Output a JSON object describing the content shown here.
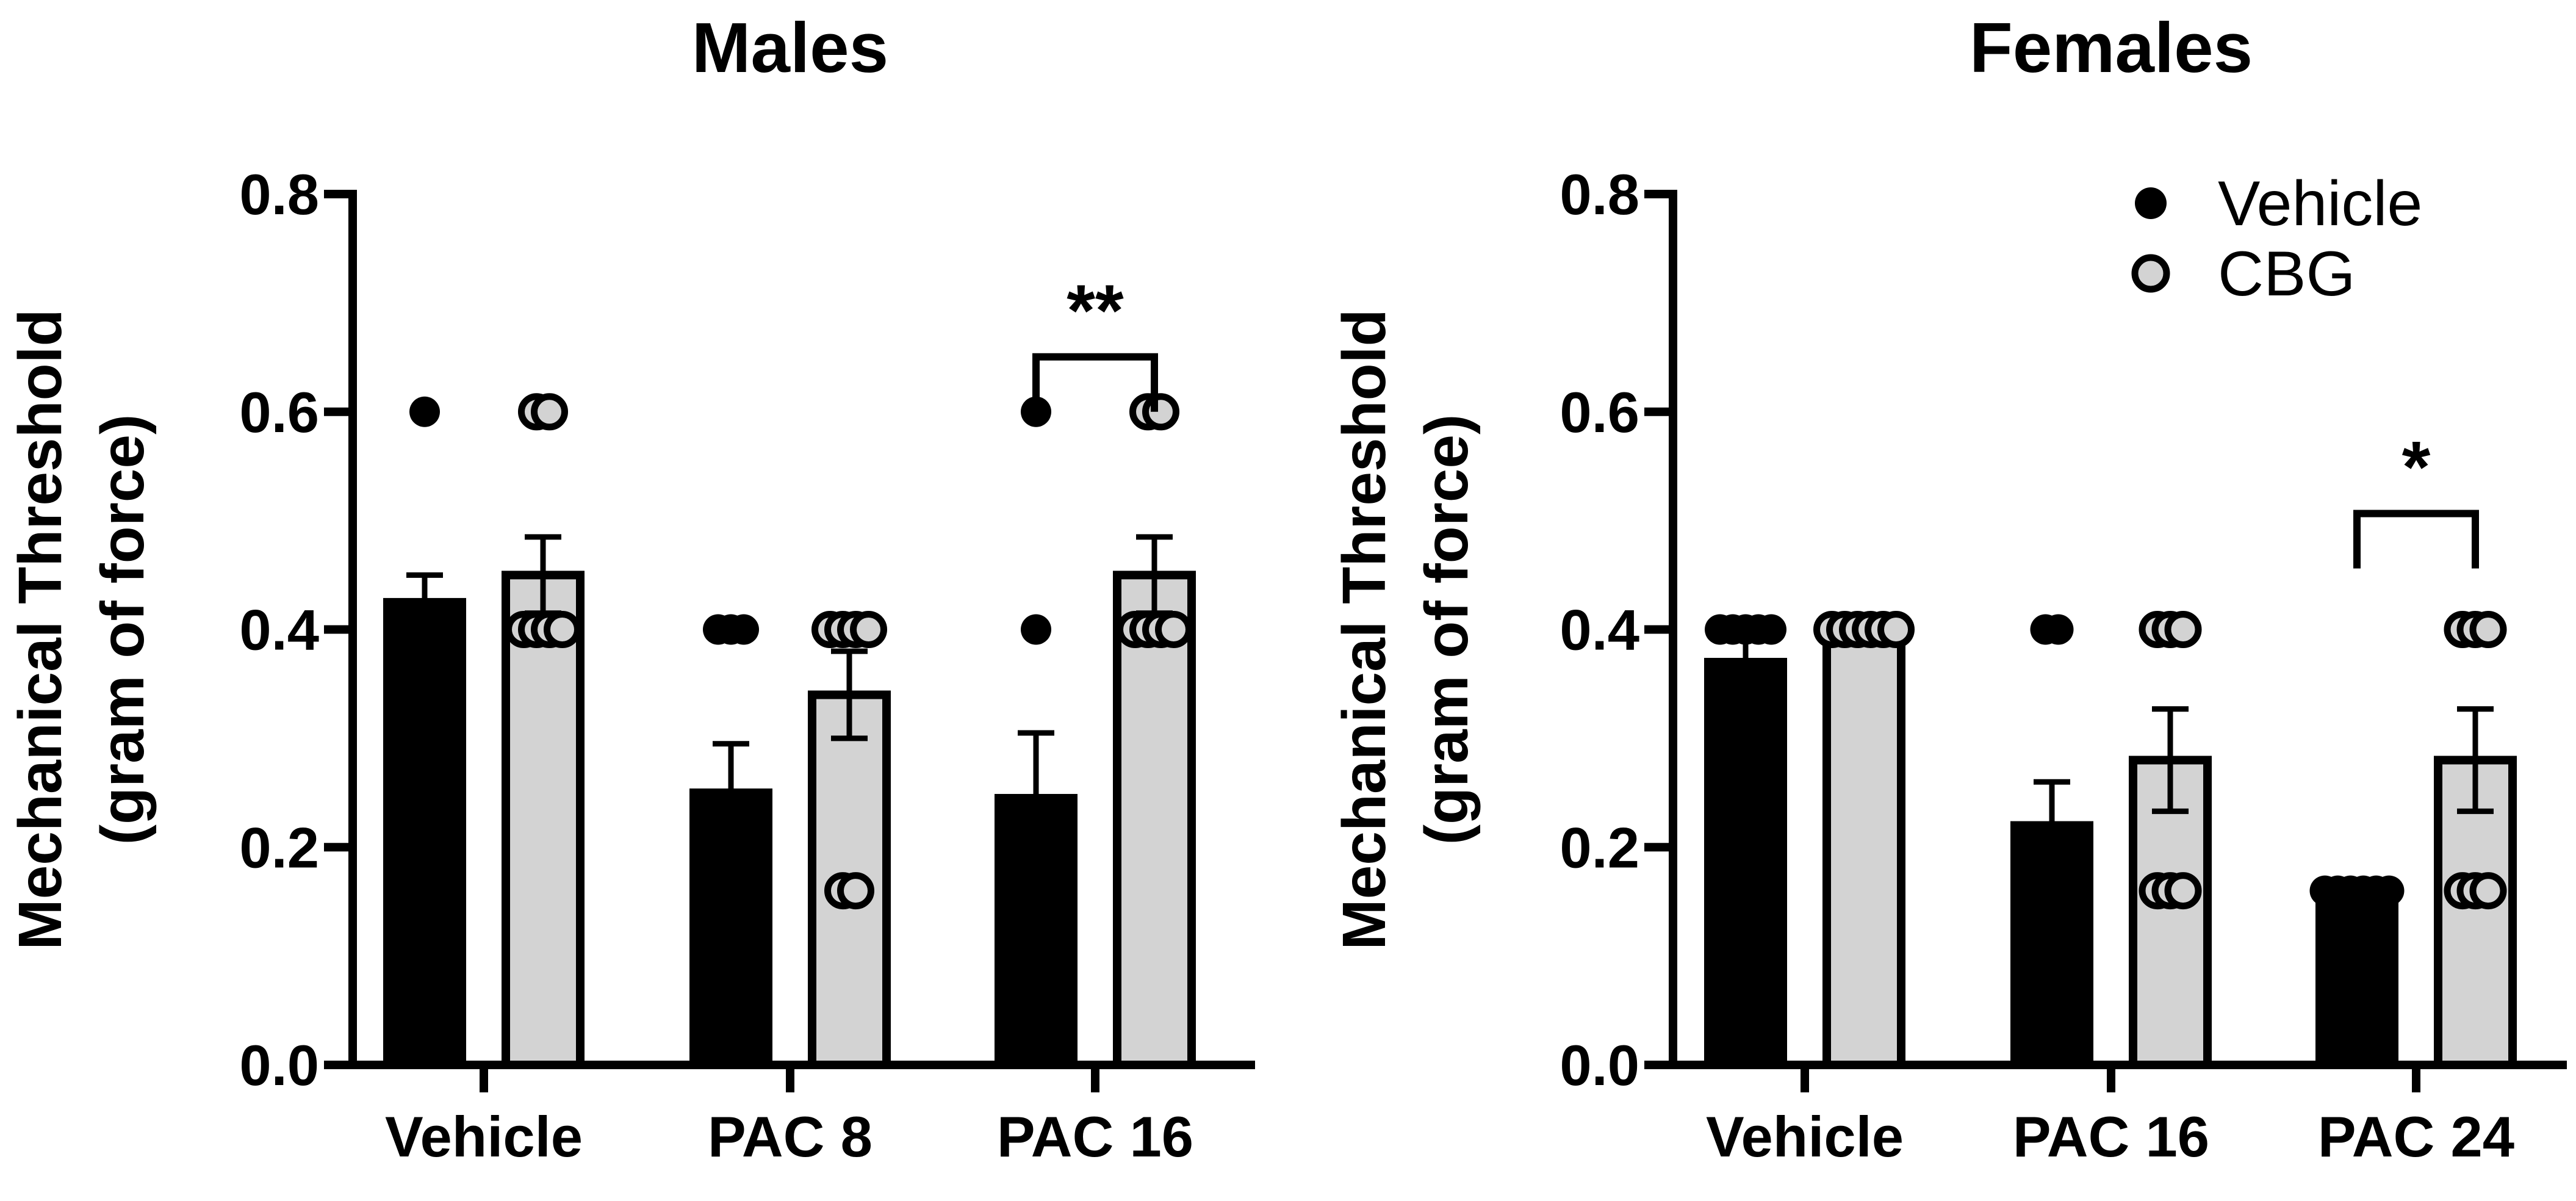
{
  "chart_data": [
    {
      "type": "bar",
      "title": "Males",
      "ylabel_line1": "Mechanical Threshold",
      "ylabel_line2": "(gram of force)",
      "xlabel": "",
      "ylim": [
        0,
        0.8
      ],
      "yticks": [
        "0.0",
        "0.2",
        "0.4",
        "0.6",
        "0.8"
      ],
      "categories": [
        "Vehicle",
        "PAC 8",
        "PAC 16"
      ],
      "series": [
        {
          "name": "Vehicle",
          "fill": "#000000",
          "values": [
            0.425,
            0.25,
            0.245
          ],
          "sem": [
            0.025,
            0.045,
            0.06
          ],
          "points": [
            [
              0.6,
              0.4,
              0.4,
              0.4,
              0.4,
              0.4
            ],
            [
              0.4,
              0.4,
              0.4,
              0.16,
              0.16,
              0.16
            ],
            [
              0.6,
              0.4,
              0.16,
              0.16,
              0.16,
              0.16
            ]
          ]
        },
        {
          "name": "CBG",
          "fill": "#d3d3d3",
          "values": [
            0.45,
            0.34,
            0.45
          ],
          "sem": [
            0.035,
            0.04,
            0.035
          ],
          "points": [
            [
              0.6,
              0.6,
              0.4,
              0.4,
              0.4,
              0.4
            ],
            [
              0.4,
              0.4,
              0.4,
              0.4,
              0.16,
              0.16
            ],
            [
              0.6,
              0.6,
              0.4,
              0.4,
              0.4,
              0.4
            ]
          ]
        }
      ],
      "significance": [
        {
          "category": "PAC 16",
          "label": "**"
        }
      ]
    },
    {
      "type": "bar",
      "title": "Females",
      "ylabel_line1": "Mechanical Threshold",
      "ylabel_line2": "(gram of force)",
      "xlabel": "",
      "ylim": [
        0,
        0.8
      ],
      "yticks": [
        "0.0",
        "0.2",
        "0.4",
        "0.6",
        "0.8"
      ],
      "categories": [
        "Vehicle",
        "PAC 16",
        "PAC 24"
      ],
      "legend": {
        "position": "top-right",
        "entries": [
          "Vehicle",
          "CBG"
        ]
      },
      "series": [
        {
          "name": "Vehicle",
          "fill": "#000000",
          "values": [
            0.37,
            0.22,
            0.16
          ],
          "sem": [
            0.02,
            0.04,
            0.0
          ],
          "points": [
            [
              0.4,
              0.4,
              0.4,
              0.4,
              0.4,
              0.16
            ],
            [
              0.4,
              0.4,
              0.16,
              0.16,
              0.16,
              0.16
            ],
            [
              0.16,
              0.16,
              0.16,
              0.16,
              0.16,
              0.16
            ]
          ]
        },
        {
          "name": "CBG",
          "fill": "#d3d3d3",
          "values": [
            0.4,
            0.28,
            0.28
          ],
          "sem": [
            0.0,
            0.047,
            0.047
          ],
          "points": [
            [
              0.4,
              0.4,
              0.4,
              0.4,
              0.4,
              0.4
            ],
            [
              0.4,
              0.4,
              0.4,
              0.16,
              0.16,
              0.16
            ],
            [
              0.4,
              0.4,
              0.4,
              0.16,
              0.16,
              0.16
            ]
          ]
        }
      ],
      "significance": [
        {
          "category": "PAC 24",
          "label": "*"
        }
      ]
    }
  ]
}
